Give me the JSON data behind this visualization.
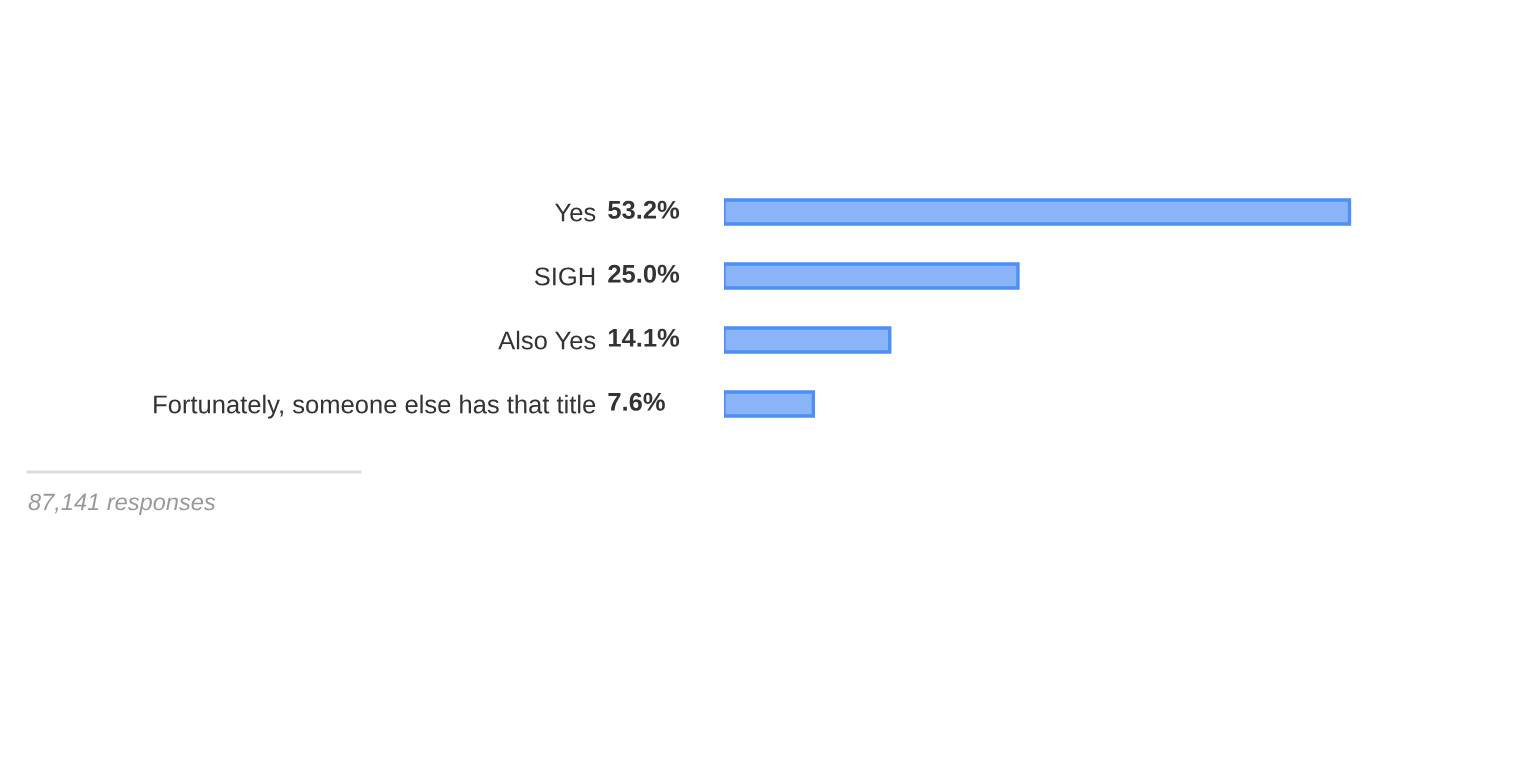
{
  "chart_data": {
    "type": "bar",
    "orientation": "horizontal",
    "categories": [
      "Yes",
      "SIGH",
      "Also Yes",
      "Fortunately, someone else has that title"
    ],
    "values": [
      53.2,
      25.0,
      14.1,
      7.6
    ],
    "value_labels": [
      "53.2%",
      "25.0%",
      "14.1%",
      "7.6%"
    ],
    "color": "#8ab4f8",
    "annotations": [
      "87,141 responses"
    ]
  }
}
